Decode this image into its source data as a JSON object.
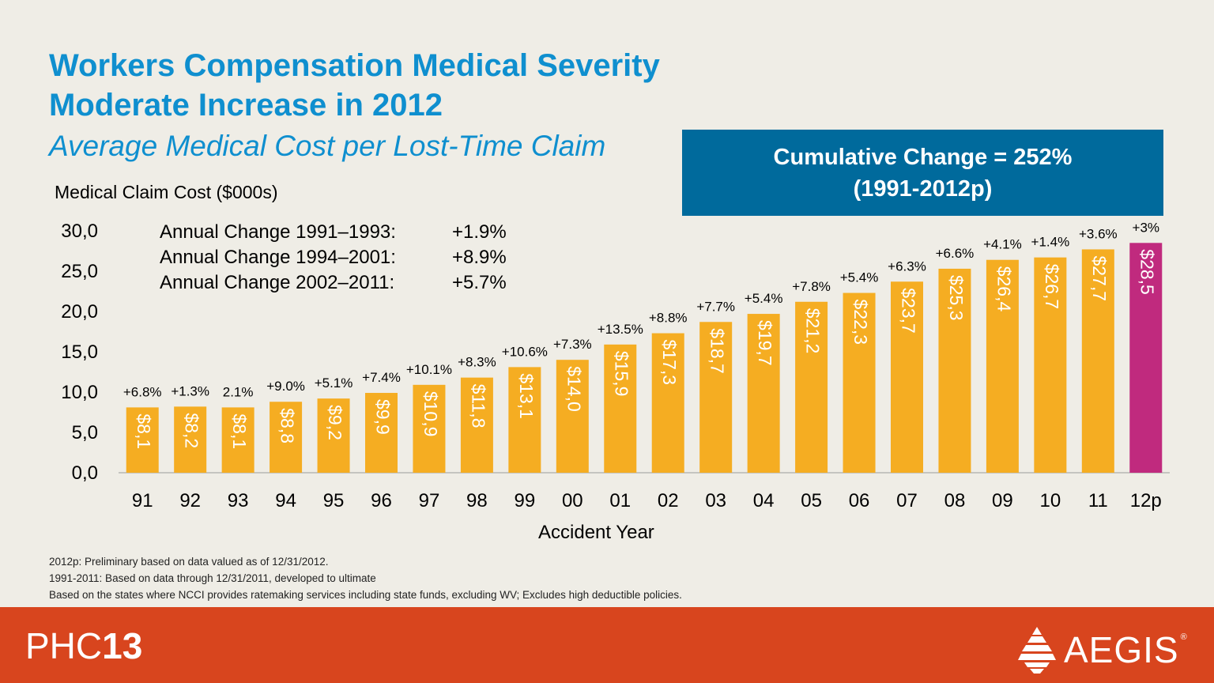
{
  "header": {
    "title_line1": "Workers Compensation Medical Severity",
    "title_line2": "Moderate Increase in 2012",
    "subtitle": "Average Medical Cost per Lost-Time Claim"
  },
  "callout": {
    "line1": "Cumulative Change = 252%",
    "line2": "(1991-2012p)",
    "color": "#006a9c"
  },
  "annual_changes": [
    {
      "label": "Annual Change 1991–1993:",
      "value": "+1.9%"
    },
    {
      "label": "Annual Change 1994–2001:",
      "value": "+8.9%"
    },
    {
      "label": "Annual Change 2002–2011:",
      "value": "+5.7%"
    }
  ],
  "footnotes": [
    "2012p: Preliminary based on data valued as of 12/31/2012.",
    "1991-2011: Based on data through 12/31/2011, developed to ultimate",
    "Based on the states where NCCI provides ratemaking services including state funds, excluding WV; Excludes high deductible policies."
  ],
  "footer": {
    "brand_light": "PHC",
    "brand_bold": "13",
    "logo_text": "AEGIS",
    "logo_reg": "®",
    "logo_icon": "aegis-pyramid-icon",
    "color": "#d8451e"
  },
  "chart_data": {
    "type": "bar",
    "ylabel": "Medical Claim Cost ($000s)",
    "xlabel": "Accident Year",
    "ylim": [
      0,
      30
    ],
    "yticks": [
      0,
      5,
      10,
      15,
      20,
      25,
      30
    ],
    "ytick_labels": [
      "0,0",
      "5,0",
      "10,0",
      "15,0",
      "20,0",
      "25,0",
      "30,0"
    ],
    "categories": [
      "91",
      "92",
      "93",
      "94",
      "95",
      "96",
      "97",
      "98",
      "99",
      "00",
      "01",
      "02",
      "03",
      "04",
      "05",
      "06",
      "07",
      "08",
      "09",
      "10",
      "11",
      "12p"
    ],
    "values": [
      8.1,
      8.2,
      8.1,
      8.8,
      9.2,
      9.9,
      10.9,
      11.8,
      13.1,
      14.0,
      15.9,
      17.3,
      18.7,
      19.7,
      21.2,
      22.3,
      23.7,
      25.3,
      26.4,
      26.7,
      27.7,
      28.5
    ],
    "value_labels": [
      "$8,1",
      "$8,2",
      "$8,1",
      "$8,8",
      "$9,2",
      "$9,9",
      "$10,9",
      "$11,8",
      "$13,1",
      "$14,0",
      "$15,9",
      "$17,3",
      "$18,7",
      "$19,7",
      "$21,2",
      "$22,3",
      "$23,7",
      "$25,3",
      "$26,4",
      "$26,7",
      "$27,7",
      "$28,5"
    ],
    "change_labels": [
      "+6.8%",
      "+1.3%",
      "2.1%",
      "+9.0%",
      "+5.1%",
      "+7.4%",
      "+10.1%",
      "+8.3%",
      "+10.6%",
      "+7.3%",
      "+13.5%",
      "+8.8%",
      "+7.7%",
      "+5.4%",
      "+7.8%",
      "+5.4%",
      "+6.3%",
      "+6.6%",
      "+4.1%",
      "+1.4%",
      "+3.6%",
      "+3%"
    ],
    "bar_color": "#f5ad22",
    "highlight_color": "#c02a7e",
    "highlight_index": 21,
    "grid": false
  }
}
